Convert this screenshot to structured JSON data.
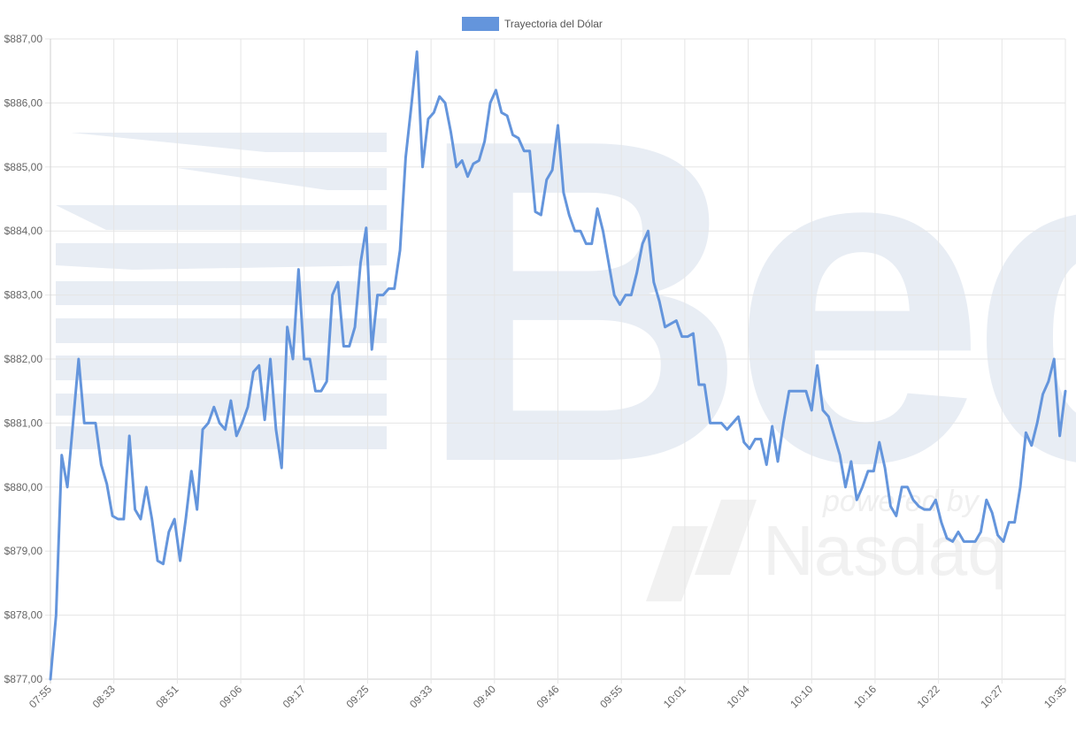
{
  "chart_data": {
    "type": "line",
    "legend": {
      "label": "Trayectoria del Dólar",
      "position": "top",
      "color": "#6495dc"
    },
    "watermark": {
      "brand_text": "Bec",
      "powered_text": "powered by",
      "partner_text": "Nasdaq"
    },
    "x_tick_labels": [
      "07:55",
      "08:33",
      "08:51",
      "09:06",
      "09:17",
      "09:25",
      "09:33",
      "09:40",
      "09:46",
      "09:55",
      "10:01",
      "10:04",
      "10:10",
      "10:16",
      "10:22",
      "10:27",
      "10:35"
    ],
    "y_tick_labels": [
      "$877,00",
      "$878,00",
      "$879,00",
      "$880,00",
      "$881,00",
      "$882,00",
      "$883,00",
      "$884,00",
      "$885,00",
      "$886,00",
      "$887,00"
    ],
    "ylim": [
      877,
      887
    ],
    "grid": true,
    "line_color": "#6495dc",
    "series": [
      {
        "name": "Trayectoria del Dólar",
        "values": [
          877.0,
          878.0,
          880.5,
          880.0,
          881.0,
          882.0,
          881.0,
          881.0,
          881.0,
          880.35,
          880.05,
          879.55,
          879.5,
          879.5,
          880.8,
          879.65,
          879.5,
          880.0,
          879.5,
          878.85,
          878.8,
          879.3,
          879.5,
          878.85,
          879.5,
          880.25,
          879.65,
          880.9,
          881.0,
          881.25,
          881.0,
          880.9,
          881.35,
          880.8,
          881.0,
          881.25,
          881.8,
          881.9,
          881.05,
          882.0,
          880.9,
          880.3,
          882.5,
          882.0,
          883.4,
          882.0,
          882.0,
          881.5,
          881.5,
          881.65,
          883.0,
          883.2,
          882.2,
          882.2,
          882.5,
          883.5,
          884.05,
          882.15,
          883.0,
          883.0,
          883.1,
          883.1,
          883.7,
          885.15,
          885.95,
          886.8,
          885.0,
          885.75,
          885.85,
          886.1,
          886.0,
          885.55,
          885.0,
          885.1,
          884.85,
          885.05,
          885.1,
          885.4,
          886.0,
          886.2,
          885.85,
          885.8,
          885.5,
          885.45,
          885.25,
          885.25,
          884.3,
          884.25,
          884.8,
          884.95,
          885.65,
          884.6,
          884.25,
          884.0,
          884.0,
          883.8,
          883.8,
          884.35,
          884.0,
          883.5,
          883.0,
          882.85,
          883.0,
          883.0,
          883.35,
          883.8,
          884.0,
          883.2,
          882.9,
          882.5,
          882.55,
          882.6,
          882.35,
          882.35,
          882.4,
          881.6,
          881.6,
          881.0,
          881.0,
          881.0,
          880.9,
          881.0,
          881.1,
          880.7,
          880.6,
          880.75,
          880.75,
          880.35,
          880.95,
          880.4,
          881.0,
          881.5,
          881.5,
          881.5,
          881.5,
          881.2,
          881.9,
          881.2,
          881.1,
          880.8,
          880.5,
          880.0,
          880.4,
          879.8,
          880.0,
          880.25,
          880.25,
          880.7,
          880.3,
          879.7,
          879.55,
          880.0,
          880.0,
          879.8,
          879.7,
          879.65,
          879.65,
          879.8,
          879.45,
          879.2,
          879.15,
          879.3,
          879.15,
          879.15,
          879.15,
          879.3,
          879.8,
          879.6,
          879.25,
          879.15,
          879.45,
          879.45,
          880.0,
          880.85,
          880.65,
          881.0,
          881.45,
          881.65,
          882.0,
          880.8,
          881.5
        ]
      }
    ]
  }
}
